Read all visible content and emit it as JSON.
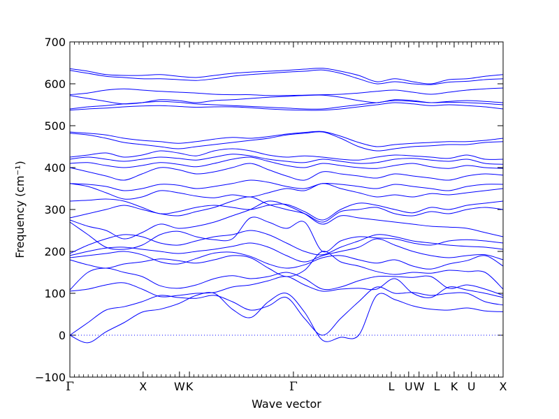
{
  "chart_data": {
    "type": "line",
    "title": "",
    "xlabel": "Wave vector",
    "ylabel": "Frequency (cm⁻¹)",
    "ylim": [
      -100,
      700
    ],
    "yticks": [
      -100,
      0,
      100,
      200,
      300,
      400,
      500,
      600,
      700
    ],
    "ytick_labels": [
      "−100",
      "0",
      "100",
      "200",
      "300",
      "400",
      "500",
      "600",
      "700"
    ],
    "xlim": [
      0,
      1
    ],
    "high_symmetry_points": [
      {
        "label": "Γ",
        "x": 0.0
      },
      {
        "label": "X",
        "x": 0.169
      },
      {
        "label": "W",
        "x": 0.253
      },
      {
        "label": "K",
        "x": 0.276
      },
      {
        "label": "Γ",
        "x": 0.516
      },
      {
        "label": "L",
        "x": 0.742
      },
      {
        "label": "U",
        "x": 0.782
      },
      {
        "label": "W",
        "x": 0.806
      },
      {
        "label": "L",
        "x": 0.847
      },
      {
        "label": "K",
        "x": 0.887
      },
      {
        "label": "U",
        "x": 0.927
      },
      {
        "label": "X",
        "x": 1.0
      }
    ],
    "zero_line": {
      "y": 0,
      "style": "dotted"
    },
    "line_color": "#0000ff",
    "grid": false,
    "legend": "none",
    "series": [
      {
        "values": [
          0,
          -18,
          8,
          30,
          55,
          62,
          75,
          95,
          100,
          62,
          42,
          80,
          100,
          55,
          -12,
          -5,
          0,
          95,
          85,
          70,
          62,
          60,
          65,
          58,
          56
        ]
      },
      {
        "values": [
          0,
          30,
          60,
          68,
          80,
          95,
          90,
          88,
          95,
          80,
          60,
          70,
          90,
          40,
          0,
          40,
          80,
          115,
          100,
          102,
          95,
          100,
          100,
          80,
          72
        ]
      },
      {
        "values": [
          105,
          110,
          120,
          125,
          110,
          92,
          95,
          100,
          102,
          115,
          120,
          130,
          140,
          120,
          105,
          110,
          112,
          110,
          135,
          100,
          90,
          115,
          108,
          100,
          90
        ]
      },
      {
        "values": [
          108,
          150,
          160,
          150,
          140,
          118,
          112,
          120,
          135,
          142,
          135,
          140,
          150,
          135,
          110,
          115,
          130,
          140,
          140,
          138,
          140,
          112,
          120,
          110,
          95
        ]
      },
      {
        "values": [
          180,
          168,
          160,
          170,
          175,
          182,
          178,
          172,
          180,
          190,
          185,
          160,
          140,
          155,
          200,
          175,
          165,
          152,
          145,
          150,
          148,
          155,
          152,
          150,
          110
        ]
      },
      {
        "values": [
          185,
          190,
          195,
          200,
          192,
          175,
          170,
          183,
          196,
          198,
          188,
          170,
          160,
          168,
          185,
          190,
          180,
          172,
          180,
          165,
          158,
          170,
          178,
          190,
          165
        ]
      },
      {
        "values": [
          190,
          200,
          208,
          210,
          205,
          200,
          195,
          200,
          205,
          212,
          220,
          210,
          190,
          175,
          190,
          200,
          210,
          230,
          215,
          200,
          190,
          185,
          190,
          192,
          180
        ]
      },
      {
        "values": [
          195,
          215,
          230,
          240,
          235,
          220,
          215,
          225,
          235,
          240,
          250,
          240,
          220,
          200,
          192,
          210,
          225,
          240,
          235,
          225,
          220,
          215,
          212,
          210,
          205
        ]
      },
      {
        "values": [
          270,
          240,
          210,
          205,
          215,
          240,
          248,
          235,
          228,
          230,
          280,
          270,
          255,
          270,
          200,
          225,
          235,
          232,
          230,
          220,
          215,
          225,
          228,
          225,
          220
        ]
      },
      {
        "values": [
          275,
          260,
          250,
          230,
          245,
          265,
          255,
          260,
          270,
          285,
          300,
          320,
          310,
          290,
          265,
          285,
          280,
          275,
          270,
          265,
          260,
          258,
          255,
          245,
          235
        ]
      },
      {
        "values": [
          280,
          290,
          300,
          310,
          300,
          290,
          285,
          295,
          305,
          320,
          330,
          312,
          300,
          290,
          270,
          295,
          300,
          305,
          290,
          285,
          295,
          290,
          300,
          305,
          300
        ]
      },
      {
        "values": [
          320,
          322,
          325,
          320,
          305,
          290,
          295,
          305,
          310,
          305,
          300,
          310,
          312,
          295,
          275,
          300,
          315,
          310,
          300,
          292,
          305,
          300,
          310,
          315,
          320
        ]
      },
      {
        "values": [
          362,
          355,
          340,
          325,
          330,
          345,
          340,
          332,
          328,
          335,
          330,
          340,
          350,
          345,
          362,
          350,
          340,
          330,
          335,
          330,
          338,
          335,
          340,
          345,
          350
        ]
      },
      {
        "values": [
          362,
          360,
          355,
          345,
          350,
          360,
          358,
          350,
          355,
          362,
          370,
          365,
          355,
          350,
          362,
          360,
          355,
          350,
          360,
          355,
          350,
          345,
          355,
          360,
          360
        ]
      },
      {
        "values": [
          400,
          390,
          380,
          370,
          385,
          400,
          395,
          385,
          390,
          400,
          410,
          395,
          380,
          370,
          390,
          385,
          380,
          375,
          385,
          380,
          375,
          370,
          380,
          385,
          382
        ]
      },
      {
        "values": [
          410,
          412,
          405,
          400,
          405,
          412,
          408,
          402,
          410,
          420,
          425,
          415,
          405,
          400,
          410,
          405,
          400,
          398,
          405,
          410,
          402,
          398,
          405,
          400,
          398
        ]
      },
      {
        "values": [
          420,
          425,
          420,
          415,
          420,
          425,
          422,
          418,
          425,
          432,
          428,
          420,
          415,
          412,
          420,
          415,
          410,
          412,
          420,
          422,
          418,
          415,
          420,
          410,
          408
        ]
      },
      {
        "values": [
          425,
          430,
          435,
          425,
          430,
          440,
          435,
          428,
          440,
          445,
          440,
          430,
          425,
          428,
          425,
          420,
          418,
          425,
          430,
          428,
          425,
          422,
          430,
          420,
          420
        ]
      },
      {
        "values": [
          482,
          478,
          470,
          460,
          455,
          450,
          445,
          450,
          455,
          460,
          465,
          470,
          478,
          482,
          485,
          470,
          450,
          440,
          445,
          450,
          452,
          455,
          455,
          460,
          462
        ]
      },
      {
        "values": [
          485,
          482,
          478,
          470,
          465,
          462,
          458,
          462,
          468,
          472,
          470,
          474,
          480,
          484,
          486,
          475,
          460,
          450,
          455,
          458,
          460,
          462,
          462,
          465,
          470
        ]
      },
      {
        "values": [
          537,
          540,
          542,
          545,
          547,
          548,
          546,
          544,
          545,
          545,
          543,
          540,
          538,
          537,
          537,
          540,
          545,
          550,
          555,
          552,
          548,
          550,
          548,
          545,
          540
        ]
      },
      {
        "values": [
          540,
          545,
          548,
          552,
          555,
          558,
          556,
          552,
          550,
          548,
          546,
          544,
          542,
          540,
          540,
          545,
          550,
          555,
          560,
          558,
          555,
          556,
          555,
          553,
          550
        ]
      },
      {
        "values": [
          572,
          565,
          558,
          552,
          555,
          562,
          560,
          555,
          560,
          562,
          565,
          568,
          570,
          572,
          573,
          568,
          560,
          555,
          562,
          560,
          555,
          558,
          560,
          558,
          555
        ]
      },
      {
        "values": [
          574,
          578,
          585,
          588,
          585,
          582,
          580,
          578,
          575,
          574,
          574,
          572,
          572,
          573,
          574,
          575,
          578,
          582,
          585,
          580,
          575,
          580,
          585,
          588,
          590
        ]
      },
      {
        "values": [
          636,
          630,
          622,
          620,
          620,
          622,
          618,
          615,
          620,
          625,
          628,
          630,
          632,
          635,
          637,
          630,
          620,
          605,
          612,
          605,
          600,
          610,
          612,
          618,
          622
        ]
      },
      {
        "values": [
          632,
          625,
          618,
          615,
          612,
          612,
          610,
          608,
          612,
          618,
          622,
          625,
          628,
          630,
          633,
          625,
          612,
          600,
          605,
          600,
          598,
          604,
          606,
          610,
          612
        ]
      }
    ]
  }
}
